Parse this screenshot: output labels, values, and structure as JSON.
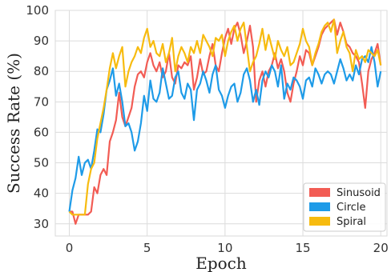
{
  "chart_data": {
    "type": "line",
    "xlabel": "Epoch",
    "ylabel": "Success Rate (%)",
    "xlim": [
      -0.9,
      20.4
    ],
    "ylim": [
      26,
      100
    ],
    "x_ticks": [
      0,
      5,
      10,
      15,
      20
    ],
    "y_ticks": [
      30,
      40,
      50,
      60,
      70,
      80,
      90,
      100
    ],
    "grid": true,
    "legend_position": "bottom-right",
    "series": [
      {
        "name": "Sinusoid",
        "color": "#f25c54",
        "points": [
          [
            0,
            34
          ],
          [
            0.2,
            34
          ],
          [
            0.4,
            30
          ],
          [
            0.6,
            33
          ],
          [
            1.0,
            33
          ],
          [
            1.2,
            33
          ],
          [
            1.4,
            34
          ],
          [
            1.6,
            42
          ],
          [
            1.8,
            40
          ],
          [
            2.0,
            46
          ],
          [
            2.2,
            48
          ],
          [
            2.4,
            46
          ],
          [
            2.6,
            57
          ],
          [
            2.8,
            60
          ],
          [
            3.0,
            64
          ],
          [
            3.2,
            73
          ],
          [
            3.4,
            65
          ],
          [
            3.6,
            62
          ],
          [
            3.8,
            65
          ],
          [
            4.0,
            68
          ],
          [
            4.2,
            75
          ],
          [
            4.4,
            79
          ],
          [
            4.6,
            80
          ],
          [
            4.8,
            78
          ],
          [
            5.0,
            83
          ],
          [
            5.2,
            86
          ],
          [
            5.4,
            82
          ],
          [
            5.6,
            80
          ],
          [
            5.8,
            83
          ],
          [
            6.0,
            78
          ],
          [
            6.2,
            80
          ],
          [
            6.4,
            86
          ],
          [
            6.6,
            78
          ],
          [
            6.8,
            76
          ],
          [
            7.0,
            82
          ],
          [
            7.2,
            81
          ],
          [
            7.4,
            83
          ],
          [
            7.6,
            82
          ],
          [
            7.8,
            85
          ],
          [
            8.0,
            74
          ],
          [
            8.2,
            78
          ],
          [
            8.4,
            84
          ],
          [
            8.6,
            79
          ],
          [
            8.8,
            80
          ],
          [
            9.0,
            85
          ],
          [
            9.2,
            89
          ],
          [
            9.4,
            82
          ],
          [
            9.6,
            80
          ],
          [
            9.8,
            86
          ],
          [
            10.0,
            91
          ],
          [
            10.2,
            94
          ],
          [
            10.4,
            89
          ],
          [
            10.6,
            94
          ],
          [
            10.8,
            96
          ],
          [
            11.0,
            92
          ],
          [
            11.2,
            86
          ],
          [
            11.4,
            90
          ],
          [
            11.6,
            95
          ],
          [
            11.8,
            88
          ],
          [
            12.0,
            70
          ],
          [
            12.2,
            77
          ],
          [
            12.4,
            80
          ],
          [
            12.6,
            75
          ],
          [
            12.8,
            80
          ],
          [
            13.0,
            82
          ],
          [
            13.2,
            86
          ],
          [
            13.4,
            81
          ],
          [
            13.6,
            84
          ],
          [
            13.8,
            80
          ],
          [
            14.0,
            73
          ],
          [
            14.2,
            70
          ],
          [
            14.4,
            76
          ],
          [
            14.6,
            80
          ],
          [
            14.8,
            85
          ],
          [
            15.0,
            82
          ],
          [
            15.2,
            87
          ],
          [
            15.4,
            86
          ],
          [
            15.6,
            82
          ],
          [
            15.8,
            85
          ],
          [
            16.0,
            88
          ],
          [
            16.2,
            92
          ],
          [
            16.4,
            94
          ],
          [
            16.6,
            95
          ],
          [
            16.8,
            96
          ],
          [
            17.0,
            97
          ],
          [
            17.2,
            92
          ],
          [
            17.4,
            96
          ],
          [
            17.6,
            93
          ],
          [
            17.8,
            89
          ],
          [
            18.0,
            88
          ],
          [
            18.2,
            86
          ],
          [
            18.4,
            85
          ],
          [
            18.6,
            83
          ],
          [
            18.8,
            76
          ],
          [
            19.0,
            68
          ],
          [
            19.2,
            80
          ],
          [
            19.4,
            84
          ],
          [
            19.6,
            86
          ],
          [
            19.8,
            89
          ],
          [
            20.0,
            82
          ]
        ]
      },
      {
        "name": "Circle",
        "color": "#1e9be8",
        "points": [
          [
            0,
            34
          ],
          [
            0.2,
            41
          ],
          [
            0.4,
            45
          ],
          [
            0.6,
            52
          ],
          [
            0.8,
            46
          ],
          [
            1.0,
            50
          ],
          [
            1.2,
            51
          ],
          [
            1.4,
            48
          ],
          [
            1.6,
            54
          ],
          [
            1.8,
            61
          ],
          [
            2.0,
            60
          ],
          [
            2.2,
            66
          ],
          [
            2.4,
            74
          ],
          [
            2.6,
            77
          ],
          [
            2.8,
            81
          ],
          [
            3.0,
            72
          ],
          [
            3.2,
            76
          ],
          [
            3.4,
            70
          ],
          [
            3.6,
            62
          ],
          [
            3.8,
            63
          ],
          [
            4.0,
            60
          ],
          [
            4.2,
            54
          ],
          [
            4.4,
            57
          ],
          [
            4.6,
            63
          ],
          [
            4.8,
            72
          ],
          [
            5.0,
            67
          ],
          [
            5.2,
            77
          ],
          [
            5.4,
            71
          ],
          [
            5.6,
            70
          ],
          [
            5.8,
            73
          ],
          [
            6.0,
            81
          ],
          [
            6.2,
            76
          ],
          [
            6.4,
            71
          ],
          [
            6.6,
            72
          ],
          [
            6.8,
            78
          ],
          [
            7.0,
            80
          ],
          [
            7.2,
            73
          ],
          [
            7.4,
            71
          ],
          [
            7.6,
            76
          ],
          [
            7.8,
            74
          ],
          [
            8.0,
            64
          ],
          [
            8.2,
            74
          ],
          [
            8.4,
            76
          ],
          [
            8.6,
            80
          ],
          [
            8.8,
            77
          ],
          [
            9.0,
            73
          ],
          [
            9.2,
            79
          ],
          [
            9.4,
            82
          ],
          [
            9.6,
            74
          ],
          [
            9.8,
            72
          ],
          [
            10.0,
            68
          ],
          [
            10.2,
            72
          ],
          [
            10.4,
            75
          ],
          [
            10.6,
            76
          ],
          [
            10.8,
            70
          ],
          [
            11.0,
            73
          ],
          [
            11.2,
            79
          ],
          [
            11.4,
            81
          ],
          [
            11.6,
            77
          ],
          [
            11.8,
            70
          ],
          [
            12.0,
            74
          ],
          [
            12.2,
            69
          ],
          [
            12.4,
            77
          ],
          [
            12.6,
            80
          ],
          [
            12.8,
            78
          ],
          [
            13.0,
            82
          ],
          [
            13.2,
            80
          ],
          [
            13.4,
            75
          ],
          [
            13.6,
            82
          ],
          [
            13.8,
            71
          ],
          [
            14.0,
            76
          ],
          [
            14.2,
            74
          ],
          [
            14.4,
            78
          ],
          [
            14.6,
            77
          ],
          [
            14.8,
            75
          ],
          [
            15.0,
            71
          ],
          [
            15.2,
            77
          ],
          [
            15.4,
            78
          ],
          [
            15.6,
            75
          ],
          [
            15.8,
            81
          ],
          [
            16.0,
            79
          ],
          [
            16.2,
            76
          ],
          [
            16.4,
            79
          ],
          [
            16.6,
            80
          ],
          [
            16.8,
            79
          ],
          [
            17.0,
            76
          ],
          [
            17.2,
            80
          ],
          [
            17.4,
            84
          ],
          [
            17.6,
            81
          ],
          [
            17.8,
            77
          ],
          [
            18.0,
            79
          ],
          [
            18.2,
            77
          ],
          [
            18.4,
            82
          ],
          [
            18.6,
            79
          ],
          [
            18.8,
            84
          ],
          [
            19.0,
            85
          ],
          [
            19.2,
            83
          ],
          [
            19.4,
            88
          ],
          [
            19.6,
            83
          ],
          [
            19.8,
            75
          ],
          [
            20.0,
            80
          ]
        ]
      },
      {
        "name": "Spiral",
        "color": "#f7bb0f",
        "points": [
          [
            0,
            34
          ],
          [
            0.2,
            33
          ],
          [
            0.4,
            33
          ],
          [
            0.6,
            33
          ],
          [
            0.8,
            33
          ],
          [
            1.0,
            33
          ],
          [
            1.2,
            43
          ],
          [
            1.4,
            48
          ],
          [
            1.6,
            50
          ],
          [
            1.8,
            58
          ],
          [
            2.0,
            63
          ],
          [
            2.2,
            68
          ],
          [
            2.4,
            74
          ],
          [
            2.6,
            81
          ],
          [
            2.8,
            86
          ],
          [
            3.0,
            81
          ],
          [
            3.2,
            85
          ],
          [
            3.4,
            88
          ],
          [
            3.6,
            75
          ],
          [
            3.8,
            80
          ],
          [
            4.0,
            83
          ],
          [
            4.2,
            85
          ],
          [
            4.4,
            88
          ],
          [
            4.6,
            86
          ],
          [
            4.8,
            91
          ],
          [
            5.0,
            94
          ],
          [
            5.2,
            88
          ],
          [
            5.4,
            90
          ],
          [
            5.6,
            86
          ],
          [
            5.8,
            85
          ],
          [
            6.0,
            89
          ],
          [
            6.2,
            83
          ],
          [
            6.4,
            86
          ],
          [
            6.6,
            91
          ],
          [
            6.8,
            80
          ],
          [
            7.0,
            85
          ],
          [
            7.2,
            88
          ],
          [
            7.4,
            86
          ],
          [
            7.6,
            83
          ],
          [
            7.8,
            88
          ],
          [
            8.0,
            86
          ],
          [
            8.2,
            90
          ],
          [
            8.4,
            86
          ],
          [
            8.6,
            92
          ],
          [
            8.8,
            90
          ],
          [
            9.0,
            88
          ],
          [
            9.2,
            85
          ],
          [
            9.4,
            91
          ],
          [
            9.6,
            90
          ],
          [
            9.8,
            92
          ],
          [
            10.0,
            85
          ],
          [
            10.2,
            90
          ],
          [
            10.4,
            93
          ],
          [
            10.6,
            95
          ],
          [
            10.8,
            90
          ],
          [
            11.0,
            94
          ],
          [
            11.2,
            96
          ],
          [
            11.4,
            88
          ],
          [
            11.6,
            80
          ],
          [
            11.8,
            83
          ],
          [
            12.0,
            85
          ],
          [
            12.2,
            89
          ],
          [
            12.4,
            94
          ],
          [
            12.6,
            87
          ],
          [
            12.8,
            92
          ],
          [
            13.0,
            88
          ],
          [
            13.2,
            84
          ],
          [
            13.4,
            90
          ],
          [
            13.6,
            87
          ],
          [
            13.8,
            85
          ],
          [
            14.0,
            88
          ],
          [
            14.2,
            82
          ],
          [
            14.4,
            83
          ],
          [
            14.6,
            86
          ],
          [
            14.8,
            89
          ],
          [
            15.0,
            94
          ],
          [
            15.2,
            90
          ],
          [
            15.4,
            88
          ],
          [
            15.6,
            82
          ],
          [
            15.8,
            86
          ],
          [
            16.0,
            89
          ],
          [
            16.2,
            93
          ],
          [
            16.4,
            95
          ],
          [
            16.6,
            96
          ],
          [
            16.8,
            93
          ],
          [
            17.0,
            97
          ],
          [
            17.2,
            86
          ],
          [
            17.4,
            90
          ],
          [
            17.6,
            93
          ],
          [
            17.8,
            88
          ],
          [
            18.0,
            86
          ],
          [
            18.2,
            80
          ],
          [
            18.4,
            87
          ],
          [
            18.6,
            84
          ],
          [
            18.8,
            85
          ],
          [
            19.0,
            83
          ],
          [
            19.2,
            87
          ],
          [
            19.4,
            86
          ],
          [
            19.6,
            85
          ],
          [
            19.8,
            87
          ],
          [
            20.0,
            82
          ]
        ]
      }
    ]
  }
}
